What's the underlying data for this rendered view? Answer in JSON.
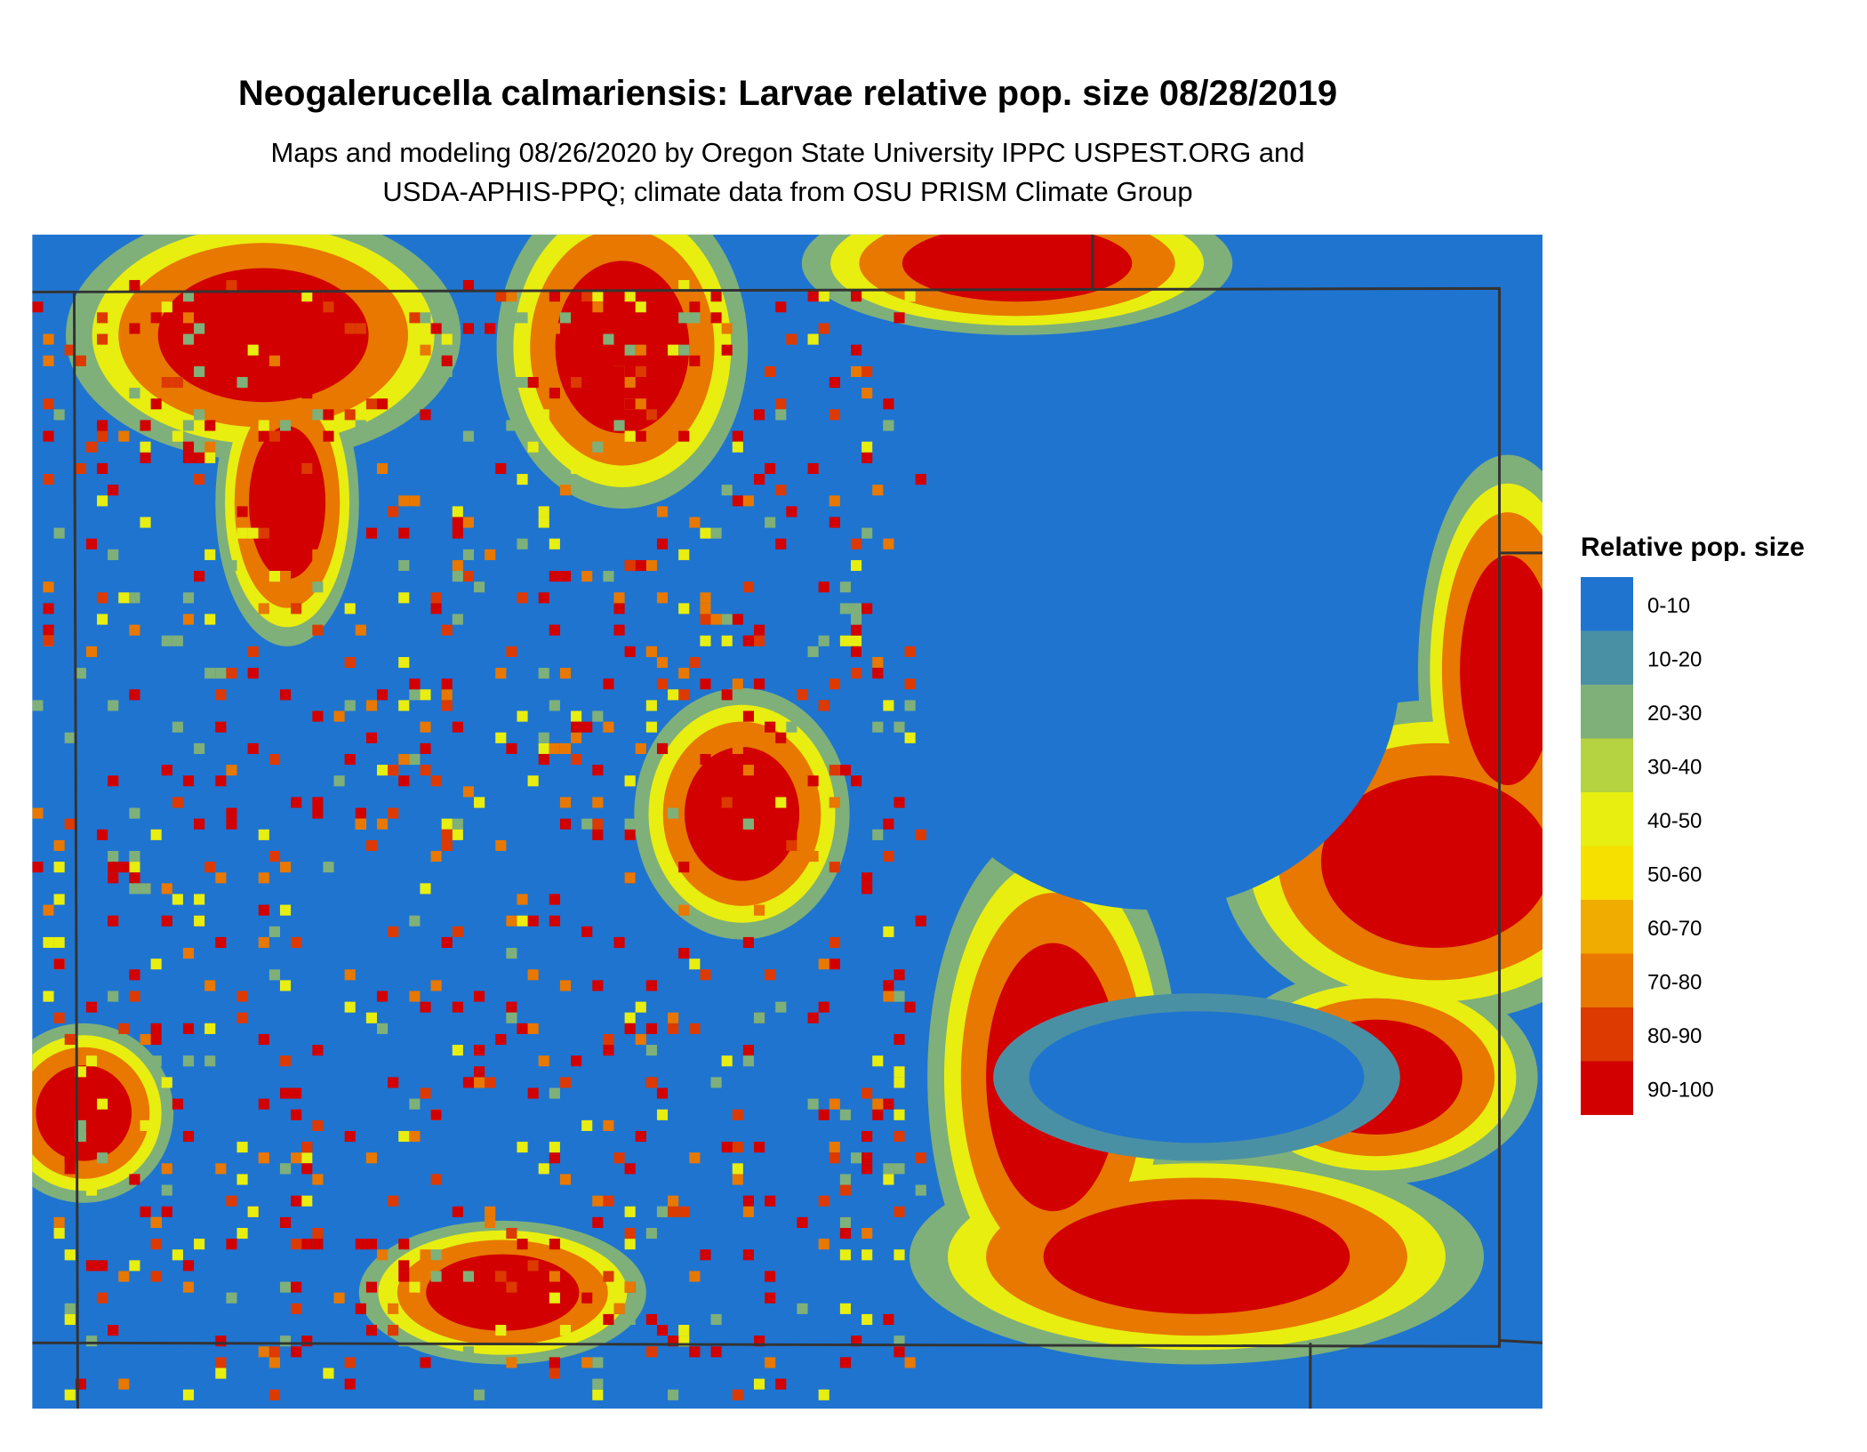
{
  "title": "Neogalerucella calmariensis: Larvae relative pop. size 08/28/2019",
  "subtitle": [
    "Maps and modeling 08/26/2020 by Oregon State University IPPC USPEST.ORG and",
    "USDA-APHIS-PPQ; climate data from OSU PRISM Climate Group"
  ],
  "legend": {
    "title": "Relative pop. size",
    "items": [
      {
        "label": "0-10",
        "color": "#1f74d0"
      },
      {
        "label": "10-20",
        "color": "#4a90a4"
      },
      {
        "label": "20-30",
        "color": "#7fb07a"
      },
      {
        "label": "30-40",
        "color": "#b5d240"
      },
      {
        "label": "40-50",
        "color": "#e8ee10"
      },
      {
        "label": "50-60",
        "color": "#f6e000"
      },
      {
        "label": "60-70",
        "color": "#f0ac00"
      },
      {
        "label": "70-80",
        "color": "#e87800"
      },
      {
        "label": "80-90",
        "color": "#dc3a00"
      },
      {
        "label": "90-100",
        "color": "#d20000"
      }
    ]
  }
}
